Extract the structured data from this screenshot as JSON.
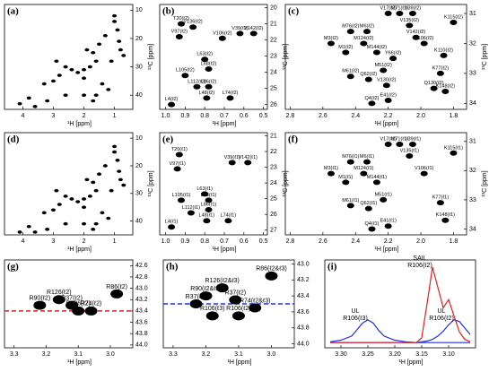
{
  "chart_data": [
    {
      "type": "scatter",
      "label": "(a)",
      "xlabel": "¹H [ppm]",
      "ylabel": "¹³C [ppm]",
      "color": "#000000",
      "x": [
        1.0,
        1.0,
        0.9,
        0.85,
        0.8,
        1.3,
        1.5,
        1.7,
        1.9,
        1.6,
        1.8,
        2.0,
        2.2,
        2.4,
        2.0,
        2.6,
        2.8,
        3.0,
        1.4,
        1.2,
        1.6,
        2.0,
        2.6,
        3.2,
        3.8,
        3.6,
        4.1,
        0.7,
        1.1,
        2.9,
        3.3,
        1.7
      ],
      "values": [
        12,
        14,
        17,
        21,
        24,
        19,
        22,
        25,
        24,
        28,
        30,
        31,
        32,
        31,
        34,
        30,
        33,
        35,
        36,
        38,
        40,
        40,
        40,
        42,
        41,
        44,
        43,
        26,
        28,
        28,
        36,
        42
      ],
      "xlim": [
        4.6,
        0.4
      ],
      "ylim": [
        45,
        8
      ],
      "xticks": [
        4,
        3,
        2,
        1
      ],
      "yticks": [
        10,
        20,
        30,
        40
      ]
    },
    {
      "type": "scatter",
      "label": "(b)",
      "xlabel": "¹H [ppm]",
      "ylabel": "¹³C [ppm]",
      "color": "#000000",
      "x": [
        0.92,
        0.86,
        0.62,
        0.55,
        0.93,
        0.71,
        0.8,
        0.78,
        0.9,
        0.84,
        0.78,
        0.67,
        0.79,
        0.97
      ],
      "values": [
        21.0,
        21.2,
        21.6,
        21.6,
        21.8,
        21.9,
        23.2,
        23.8,
        24.2,
        24.9,
        24.9,
        25.6,
        25.6,
        26.0
      ],
      "point_labels": [
        "T20(ℓ2)",
        "V136(ℓ2)",
        "V39(ℓ2)",
        "V142(ℓ2)",
        "V97(ℓ2)",
        "V106(ℓ2)",
        "L63(ℓ2)",
        "L68(ℓ2)",
        "L105(ℓ2)",
        "L112(ℓ2)",
        "L86(ℓ2)",
        "L74(ℓ2)",
        "L48(ℓ2)",
        "L4(ℓ2)"
      ],
      "label_color": "#e02020",
      "xlim": [
        1.03,
        0.48
      ],
      "ylim": [
        26.3,
        19.8
      ],
      "xticks": [
        {
          "value": 1,
          "label": "1.0"
        },
        0.9,
        0.8,
        0.7,
        0.6,
        0.5
      ],
      "yticks": [
        20,
        21,
        22,
        23,
        24,
        25,
        26
      ]
    },
    {
      "type": "scatter",
      "label": "(c)",
      "xlabel": "¹H [ppm]",
      "ylabel": "¹³C [ppm]",
      "color": "#000000",
      "x": [
        2.2,
        2.13,
        2.05,
        2.43,
        2.33,
        2.07,
        2.03,
        1.98,
        2.35,
        2.55,
        2.46,
        2.27,
        2.17,
        2.23,
        2.43,
        2.32,
        2.21,
        1.88,
        1.92,
        1.85,
        2.3,
        2.2,
        1.8,
        1.86
      ],
      "values": [
        31.0,
        31.0,
        31.0,
        31.6,
        31.6,
        31.4,
        31.8,
        32.0,
        32.0,
        32.0,
        32.3,
        32.3,
        32.5,
        32.9,
        33.1,
        33.2,
        33.4,
        33.0,
        33.5,
        33.6,
        34.0,
        33.9,
        31.3,
        32.4
      ],
      "point_labels": [
        "V17(ℓ2)",
        "M71(ℓ2)",
        "V39(ℓ2)",
        "M76(ℓ2)",
        "M6(ℓ2)",
        "V135(ℓ2)",
        "V142(ℓ2)",
        "V106(ℓ2)",
        "M124(ℓ2)",
        "M3(ℓ2)",
        "M1(ℓ2)",
        "M144(ℓ2)",
        "Y66(ℓ2)",
        "M51(ℓ2)",
        "M61(ℓ2)",
        "Q62(ℓ2)",
        "V130(ℓ2)",
        "K77(ℓ2)",
        "Q130(ℓ2)",
        "K148(ℓ2)",
        "Q4(ℓ2)",
        "E41(ℓ2)",
        "K115(ℓ2)",
        "K110(ℓ2)"
      ],
      "label_color": "#e02020",
      "xlim": [
        2.83,
        1.72
      ],
      "ylim": [
        34.2,
        30.7
      ],
      "xticks": [
        2.8,
        2.6,
        2.4,
        2.2,
        {
          "value": 2,
          "label": "2.0"
        },
        1.8
      ],
      "yticks": [
        31,
        32,
        33,
        34
      ]
    },
    {
      "type": "scatter",
      "label": "(d)",
      "xlabel": "¹H [ppm]",
      "ylabel": "¹³C [ppm]",
      "color": "#000000",
      "x": [
        1.0,
        1.0,
        0.9,
        0.85,
        0.8,
        1.3,
        1.5,
        1.7,
        1.9,
        1.6,
        1.8,
        2.0,
        2.2,
        2.4,
        2.0,
        2.6,
        2.8,
        3.0,
        1.4,
        1.2,
        1.6,
        2.0,
        2.6,
        3.2,
        3.8,
        3.6,
        4.1,
        0.7,
        1.1,
        2.9,
        3.3,
        1.7
      ],
      "values": [
        13,
        15,
        18,
        22,
        25,
        20,
        23,
        26,
        25,
        29,
        31,
        32,
        33,
        32,
        35,
        31,
        34,
        36,
        37,
        39,
        41,
        41,
        41,
        43,
        42,
        44,
        44,
        27,
        29,
        29,
        37,
        43
      ],
      "xlim": [
        4.6,
        0.4
      ],
      "ylim": [
        45,
        8
      ],
      "xticks": [
        4,
        3,
        2,
        1
      ],
      "yticks": [
        10,
        20,
        30,
        40
      ]
    },
    {
      "type": "scatter",
      "label": "(e)",
      "xlabel": "¹H [ppm]",
      "ylabel": "¹³C [ppm]",
      "color": "#000000",
      "x": [
        0.93,
        0.66,
        0.58,
        0.94,
        0.8,
        0.92,
        0.78,
        0.87,
        0.78,
        0.68,
        0.79,
        0.97
      ],
      "values": [
        22.2,
        22.7,
        22.7,
        23.1,
        24.7,
        25.1,
        25.1,
        25.9,
        25.7,
        26.4,
        26.4,
        26.8
      ],
      "point_labels": [
        "T20(ℓ1)",
        "V39(ℓ1)",
        "V142(ℓ1)",
        "V97(ℓ1)",
        "L63(ℓ1)",
        "L105(ℓ1)",
        "L68(ℓ1)",
        "L112(ℓ1)",
        "L86(ℓ1)",
        "L74(ℓ1)",
        "L48(ℓ1)",
        "L4(ℓ1)"
      ],
      "label_color": "#e02020",
      "xlim": [
        1.03,
        0.48
      ],
      "ylim": [
        27.3,
        20.8
      ],
      "xticks": [
        {
          "value": 1,
          "label": "1.0"
        },
        0.9,
        0.8,
        0.7,
        0.6,
        0.5
      ],
      "yticks": [
        21,
        22,
        23,
        24,
        25,
        26,
        27
      ]
    },
    {
      "type": "scatter",
      "label": "(f)",
      "xlabel": "¹H [ppm]",
      "ylabel": "¹³C [ppm]",
      "color": "#000000",
      "x": [
        2.2,
        2.13,
        2.05,
        2.43,
        2.33,
        2.07,
        1.98,
        2.35,
        2.55,
        2.46,
        2.27,
        2.23,
        2.43,
        2.32,
        1.88,
        1.85,
        2.3,
        2.2,
        1.8
      ],
      "values": [
        31.1,
        31.1,
        31.1,
        31.7,
        31.7,
        31.5,
        32.1,
        32.1,
        32.1,
        32.4,
        32.4,
        33.0,
        33.2,
        33.3,
        33.1,
        33.7,
        34.0,
        33.9,
        31.4
      ],
      "point_labels": [
        "V17(ℓ1)",
        "M71(ℓ1)",
        "V39(ℓ1)",
        "M76(ℓ1)",
        "M6(ℓ1)",
        "V135(ℓ1)",
        "V106(ℓ1)",
        "M124(ℓ1)",
        "M3(ℓ1)",
        "M1(ℓ1)",
        "M144(ℓ1)",
        "M51(ℓ1)",
        "M61(ℓ1)",
        "Q62(ℓ1)",
        "K77(ℓ1)",
        "K148(ℓ1)",
        "Q4(ℓ1)",
        "E41(ℓ1)",
        "K115(ℓ1)"
      ],
      "label_color": "#e02020",
      "xlim": [
        2.83,
        1.72
      ],
      "ylim": [
        34.2,
        30.7
      ],
      "xticks": [
        2.8,
        2.6,
        2.4,
        2.2,
        {
          "value": 2,
          "label": "2.0"
        },
        1.8
      ],
      "yticks": [
        31,
        32,
        33,
        34
      ]
    },
    {
      "type": "scatter",
      "label": "(g)",
      "xlabel": "¹H [ppm]",
      "color": "#000000",
      "big": true,
      "x": [
        2.98,
        3.16,
        3.22,
        3.12,
        3.06,
        3.1
      ],
      "values": [
        43.1,
        43.2,
        43.3,
        43.3,
        43.4,
        43.4
      ],
      "point_labels": [
        "R86(ℓ2)",
        "R126(ℓ2)",
        "R90(ℓ2)",
        "R37(ℓ2)",
        "R74(ℓ2)",
        "R106(ℓ2)"
      ],
      "label_color": "#e02020",
      "hline": 43.4,
      "hline_color": "#e02020",
      "xlim": [
        3.33,
        2.93
      ],
      "ylim": [
        44.05,
        42.5
      ],
      "xticks": [
        3.3,
        3.2,
        3.1,
        {
          "value": 3,
          "label": "3.0"
        }
      ],
      "yticks": [
        42.6,
        42.8,
        {
          "value": 43,
          "label": "43.0"
        },
        43.2,
        43.4,
        43.6,
        43.8,
        {
          "value": 44,
          "label": "44.0"
        }
      ]
    },
    {
      "type": "scatter",
      "label": "(h)",
      "xlabel": "¹H [ppm]",
      "color": "#000000",
      "big": true,
      "x": [
        3.0,
        3.15,
        3.2,
        3.11,
        3.05,
        3.23,
        3.18,
        3.1
      ],
      "values": [
        43.15,
        43.3,
        43.4,
        43.45,
        43.55,
        43.5,
        43.65,
        43.65
      ],
      "point_labels": [
        "R86(ℓ2&ℓ3)",
        "R126(ℓ2&ℓ3)",
        "R90(ℓ2&ℓ3)",
        "R37(ℓ2)",
        "R74(ℓ2&ℓ3)",
        "R37(ℓ3)",
        "R106(ℓ3)",
        "R106(ℓ2)"
      ],
      "label_color": "#e02020",
      "hline": 43.5,
      "hline_color": "#2030e0",
      "xlim": [
        3.33,
        2.93
      ],
      "ylim": [
        44.05,
        42.95
      ],
      "xticks": [
        3.3,
        3.2,
        3.1,
        {
          "value": 3,
          "label": "3.0"
        }
      ],
      "yticks": [
        {
          "value": 43,
          "label": "43.0"
        },
        43.2,
        43.4,
        43.6,
        43.8,
        {
          "value": 44,
          "label": "44.0"
        }
      ]
    },
    {
      "type": "line",
      "label": "(i)",
      "xlabel": "¹H [ppm]",
      "x": [
        3.32,
        3.3,
        3.28,
        3.27,
        3.26,
        3.25,
        3.24,
        3.23,
        3.22,
        3.2,
        3.18,
        3.16,
        3.15,
        3.14,
        3.13,
        3.12,
        3.11,
        3.1,
        3.09,
        3.08,
        3.07,
        3.06
      ],
      "series": [
        {
          "name": "UL R106(ℓ3)",
          "color": "#2030e0",
          "values": [
            0.03,
            0.05,
            0.1,
            0.18,
            0.26,
            0.3,
            0.26,
            0.17,
            0.1,
            0.05,
            0.03,
            0.02,
            0.02,
            0.02,
            0.02,
            0.02,
            0.02,
            0.02,
            0.02,
            0.02,
            0.02,
            0.02
          ]
        },
        {
          "name": "UL R106(ℓ2)",
          "color": "#2030e0",
          "values": [
            0.02,
            0.02,
            0.02,
            0.02,
            0.02,
            0.02,
            0.02,
            0.02,
            0.02,
            0.02,
            0.02,
            0.02,
            0.03,
            0.04,
            0.06,
            0.1,
            0.16,
            0.24,
            0.3,
            0.28,
            0.2,
            0.12
          ]
        },
        {
          "name": "SAIL R106(ℓ2)",
          "color": "#e02020",
          "values": [
            0.02,
            0.02,
            0.02,
            0.02,
            0.02,
            0.02,
            0.02,
            0.02,
            0.02,
            0.02,
            0.02,
            0.02,
            0.08,
            0.5,
            0.95,
            0.7,
            0.45,
            0.55,
            0.35,
            0.15,
            0.06,
            0.03
          ]
        }
      ],
      "xlim": [
        3.33,
        3.05
      ],
      "xticks": [
        {
          "value": 3.3,
          "label": "3.30"
        },
        3.25,
        {
          "value": 3.2,
          "label": "3.20"
        },
        3.15,
        {
          "value": 3.1,
          "label": "3.10"
        }
      ]
    }
  ]
}
